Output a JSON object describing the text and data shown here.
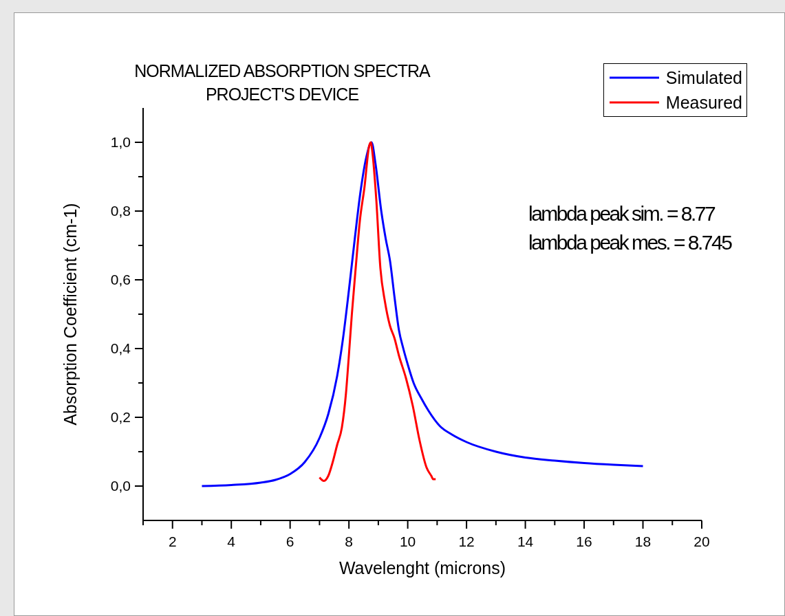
{
  "chart_data": {
    "type": "line",
    "title": "NORMALIZED ABSORPTION SPECTRA",
    "subtitle": "PROJECT'S DEVICE",
    "xlabel": "Wavelenght (microns)",
    "ylabel": "Absorption Coefficient (cm-1)",
    "annotations": [
      "lambda peak sim. = 8.77",
      "lambda peak mes. = 8.745"
    ],
    "xlim": [
      1,
      20
    ],
    "xticks": [
      {
        "value": 1,
        "label": null
      },
      2,
      {
        "value": 3,
        "label": null
      },
      4,
      {
        "value": 5,
        "label": null
      },
      6,
      {
        "value": 7,
        "label": null
      },
      8,
      {
        "value": 9,
        "label": null
      },
      10,
      {
        "value": 11,
        "label": null
      },
      12,
      {
        "value": 13,
        "label": null
      },
      14,
      {
        "value": 15,
        "label": null
      },
      16,
      {
        "value": 17,
        "label": null
      },
      18,
      {
        "value": 19,
        "label": null
      },
      20
    ],
    "ylim": [
      -0.1,
      1.1
    ],
    "yticks": [
      {
        "value": 0,
        "label": "0,0"
      },
      {
        "value": 0.1,
        "label": null
      },
      {
        "value": 0.2,
        "label": "0,2"
      },
      {
        "value": 0.3,
        "label": null
      },
      {
        "value": 0.4,
        "label": "0,4"
      },
      {
        "value": 0.5,
        "label": null
      },
      {
        "value": 0.6,
        "label": "0,6"
      },
      {
        "value": 0.7,
        "label": null
      },
      {
        "value": 0.8,
        "label": "0,8"
      },
      {
        "value": 0.9,
        "label": null
      },
      {
        "value": 1,
        "label": "1,0"
      }
    ],
    "legend": "top right",
    "marker": "none",
    "line_style": "solid",
    "series": [
      {
        "name": "Simulated",
        "color": "#0000ff",
        "x": [
          3,
          4,
          5,
          5.5,
          6,
          6.5,
          7,
          7.3,
          7.6,
          7.8,
          8,
          8.2,
          8.4,
          8.6,
          8.77,
          8.9,
          9.1,
          9.25,
          9.4,
          9.55,
          9.7,
          9.85,
          10,
          10.2,
          10.47,
          10.7,
          11.1,
          11.5,
          12,
          13,
          14,
          15,
          16,
          17,
          18
        ],
        "values": [
          0,
          0.003,
          0.01,
          0.018,
          0.035,
          0.07,
          0.14,
          0.21,
          0.32,
          0.43,
          0.57,
          0.72,
          0.86,
          0.96,
          1,
          0.94,
          0.8,
          0.72,
          0.654,
          0.55,
          0.454,
          0.4,
          0.354,
          0.3,
          0.254,
          0.22,
          0.174,
          0.15,
          0.128,
          0.1,
          0.083,
          0.074,
          0.067,
          0.062,
          0.058
        ]
      },
      {
        "name": "Measured",
        "color": "#ff0000",
        "x": [
          7,
          7.15,
          7.3,
          7.45,
          7.6,
          7.76,
          7.9,
          7.99,
          8.1,
          8.23,
          8.37,
          8.53,
          8.69,
          8.745,
          8.8,
          8.93,
          9.07,
          9.23,
          9.39,
          9.55,
          9.7,
          9.94,
          10.17,
          10.4,
          10.64,
          10.8,
          10.87,
          10.95
        ],
        "values": [
          0.025,
          0.015,
          0.03,
          0.07,
          0.12,
          0.17,
          0.27,
          0.37,
          0.5,
          0.634,
          0.77,
          0.87,
          0.99,
          1,
          0.97,
          0.834,
          0.634,
          0.534,
          0.468,
          0.43,
          0.38,
          0.314,
          0.234,
          0.134,
          0.054,
          0.03,
          0.02,
          0.02
        ]
      }
    ]
  }
}
